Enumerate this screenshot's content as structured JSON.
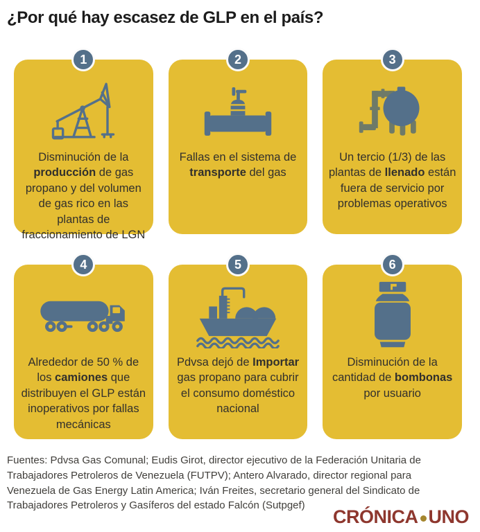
{
  "title": "¿Por qué hay escasez de GLP en el país?",
  "colors": {
    "card_bg": "#E4BD33",
    "icon_slate": "#54708A",
    "pipe_gray": "#6E7A68",
    "badge": "#54708A",
    "logo_maroon": "#8E372E",
    "logo_dot_gold": "#A5862E"
  },
  "cards": [
    {
      "number": "1",
      "icon": "oil-pumpjack-icon",
      "text_parts": [
        {
          "t": "Disminución de la ",
          "b": false
        },
        {
          "t": "producción",
          "b": true
        },
        {
          "t": " de gas propano y del volumen de gas rico en las plantas de fraccionamiento de LGN",
          "b": false
        }
      ]
    },
    {
      "number": "2",
      "icon": "pipeline-valve-icon",
      "text_parts": [
        {
          "t": "Fallas en el sistema de ",
          "b": false
        },
        {
          "t": "transporte",
          "b": true
        },
        {
          "t": " del gas",
          "b": false
        }
      ]
    },
    {
      "number": "3",
      "icon": "gas-plant-tank-icon",
      "text_parts": [
        {
          "t": "Un tercio (1/3) de las plantas de ",
          "b": false
        },
        {
          "t": "llenado",
          "b": true
        },
        {
          "t": " están fuera de servicio por problemas operativos",
          "b": false
        }
      ]
    },
    {
      "number": "4",
      "icon": "tanker-truck-icon",
      "text_parts": [
        {
          "t": "Alrededor de 50 % de los ",
          "b": false
        },
        {
          "t": "camiones",
          "b": true
        },
        {
          "t": " que distribuyen el GLP están inoperativos por fallas mecánicas",
          "b": false
        }
      ]
    },
    {
      "number": "5",
      "icon": "gas-tanker-ship-icon",
      "text_parts": [
        {
          "t": "Pdvsa dejó de ",
          "b": false
        },
        {
          "t": "Importar",
          "b": true
        },
        {
          "t": " gas propano para cubrir el consumo doméstico nacional",
          "b": false
        }
      ]
    },
    {
      "number": "6",
      "icon": "gas-cylinder-icon",
      "text_parts": [
        {
          "t": "Disminución de la cantidad de ",
          "b": false
        },
        {
          "t": "bombonas",
          "b": true
        },
        {
          "t": " por usuario",
          "b": false
        }
      ]
    }
  ],
  "footer": {
    "sources": "Fuentes: Pdvsa Gas Comunal; Eudis Girot, director ejecutivo de la Federación Unitaria de Trabajadores Petroleros de Venezuela (FUTPV); Antero Alvarado, director regional para Venezuela de Gas Energy Latin America; Iván Freites, secretario general del Sindicato de Trabajadores Petroleros y Gasíferos del estado Falcón (Sutpgef)"
  },
  "logo": {
    "part1": "CRÓNICA",
    "part2": "UNO",
    "separator": "dot"
  }
}
